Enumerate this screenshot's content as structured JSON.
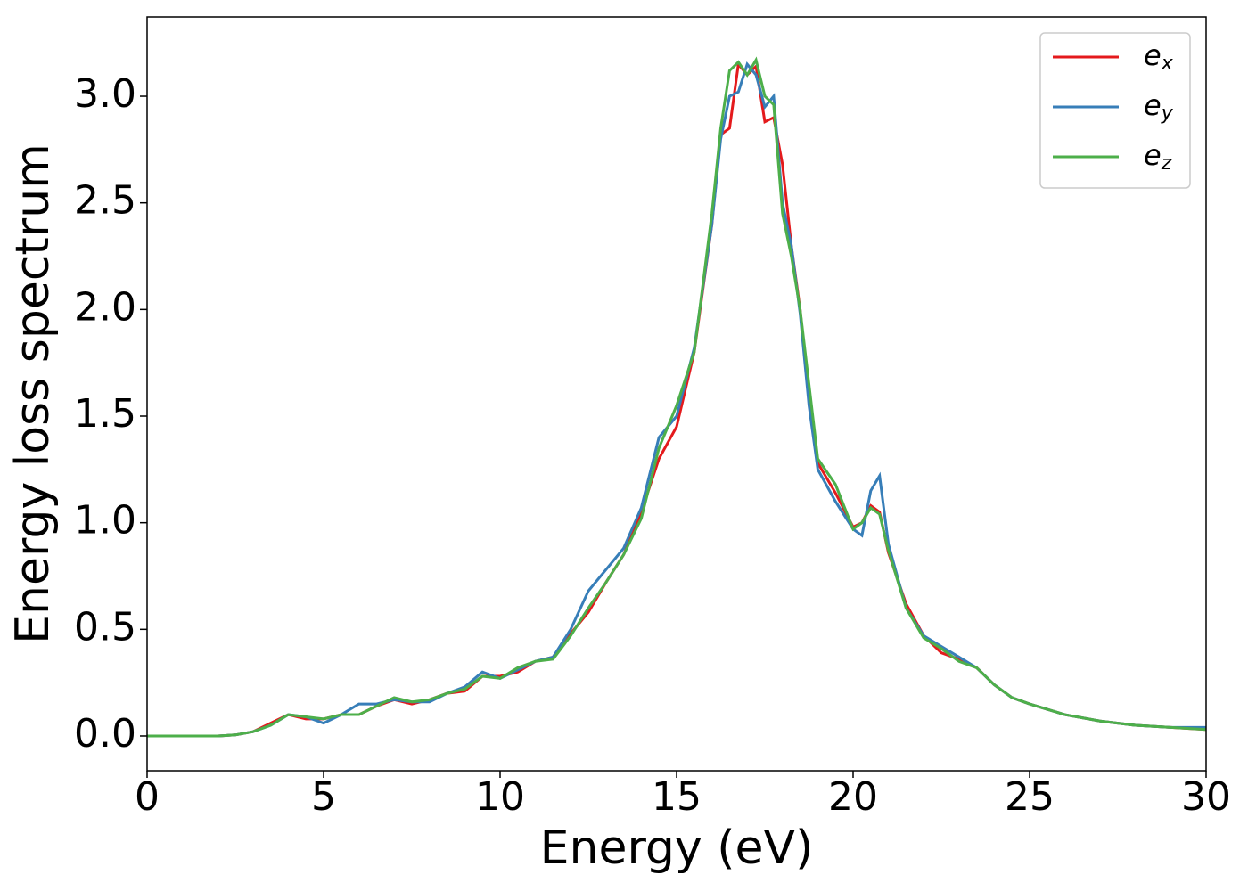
{
  "chart_data": {
    "type": "line",
    "x_label": "Energy (eV)",
    "y_label": "Energy loss spectrum",
    "x": [
      0,
      1,
      2,
      2.5,
      3,
      3.5,
      4,
      4.5,
      5,
      5.5,
      6,
      6.5,
      7,
      7.5,
      8,
      8.5,
      9,
      9.5,
      10,
      10.5,
      11,
      11.5,
      12,
      12.5,
      13,
      13.5,
      14,
      14.5,
      15,
      15.5,
      16,
      16.25,
      16.5,
      16.75,
      17,
      17.25,
      17.5,
      17.75,
      18,
      18.25,
      18.5,
      18.75,
      19,
      19.5,
      20,
      20.25,
      20.5,
      20.75,
      21,
      21.5,
      22,
      22.5,
      23,
      23.5,
      24,
      24.5,
      25,
      26,
      27,
      28,
      29,
      30
    ],
    "series": [
      {
        "name": "ex",
        "color": "#e41a1c",
        "values": [
          0,
          0,
          0,
          0.005,
          0.02,
          0.06,
          0.1,
          0.08,
          0.08,
          0.1,
          0.1,
          0.14,
          0.17,
          0.15,
          0.17,
          0.2,
          0.21,
          0.28,
          0.28,
          0.3,
          0.35,
          0.37,
          0.48,
          0.58,
          0.72,
          0.85,
          1.05,
          1.3,
          1.45,
          1.8,
          2.4,
          2.82,
          2.85,
          3.15,
          3.1,
          3.14,
          2.88,
          2.9,
          2.68,
          2.3,
          2.0,
          1.6,
          1.28,
          1.14,
          0.98,
          1.0,
          1.08,
          1.05,
          0.86,
          0.62,
          0.47,
          0.39,
          0.36,
          0.32,
          0.24,
          0.18,
          0.15,
          0.1,
          0.07,
          0.05,
          0.04,
          0.03
        ]
      },
      {
        "name": "ey",
        "color": "#377eb8",
        "values": [
          0,
          0,
          0,
          0.005,
          0.02,
          0.05,
          0.1,
          0.09,
          0.06,
          0.1,
          0.15,
          0.15,
          0.17,
          0.16,
          0.16,
          0.2,
          0.23,
          0.3,
          0.27,
          0.31,
          0.35,
          0.37,
          0.5,
          0.68,
          0.78,
          0.88,
          1.07,
          1.4,
          1.5,
          1.82,
          2.4,
          2.8,
          3.0,
          3.02,
          3.15,
          3.1,
          2.95,
          3.0,
          2.5,
          2.3,
          1.98,
          1.55,
          1.25,
          1.1,
          0.97,
          0.94,
          1.15,
          1.22,
          0.9,
          0.6,
          0.47,
          0.42,
          0.37,
          0.32,
          0.24,
          0.18,
          0.15,
          0.1,
          0.07,
          0.05,
          0.04,
          0.04
        ]
      },
      {
        "name": "ez",
        "color": "#4daf4a",
        "values": [
          0,
          0,
          0,
          0.005,
          0.02,
          0.05,
          0.1,
          0.09,
          0.08,
          0.1,
          0.1,
          0.14,
          0.18,
          0.16,
          0.17,
          0.2,
          0.22,
          0.28,
          0.27,
          0.32,
          0.35,
          0.36,
          0.47,
          0.6,
          0.72,
          0.85,
          1.02,
          1.35,
          1.55,
          1.8,
          2.45,
          2.85,
          3.12,
          3.16,
          3.1,
          3.17,
          3.0,
          2.96,
          2.45,
          2.25,
          2.0,
          1.65,
          1.3,
          1.18,
          0.97,
          1.0,
          1.07,
          1.04,
          0.87,
          0.6,
          0.46,
          0.41,
          0.35,
          0.32,
          0.24,
          0.18,
          0.15,
          0.1,
          0.07,
          0.05,
          0.04,
          0.03
        ]
      }
    ],
    "xlim": [
      0,
      30
    ],
    "ylim": [
      -0.163,
      3.372
    ],
    "xticks": [
      0,
      5,
      10,
      15,
      20,
      25,
      30
    ],
    "yticks": [
      {
        "value": 0,
        "label": "0.0"
      },
      {
        "value": 0.5,
        "label": "0.5"
      },
      {
        "value": 1,
        "label": "1.0"
      },
      {
        "value": 1.5,
        "label": "1.5"
      },
      {
        "value": 2,
        "label": "2.0"
      },
      {
        "value": 2.5,
        "label": "2.5"
      },
      {
        "value": 3,
        "label": "3.0"
      }
    ],
    "legend": "upper right",
    "grid": false
  }
}
